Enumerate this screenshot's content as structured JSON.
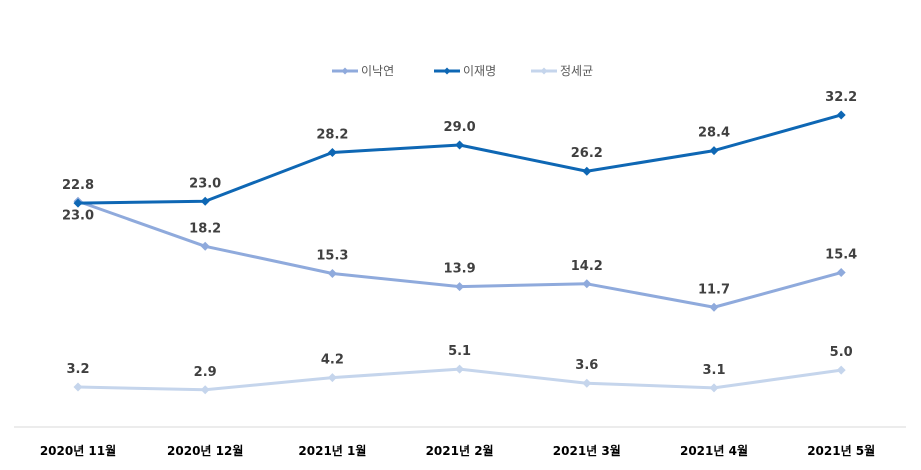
{
  "chart_data": {
    "type": "line",
    "categories": [
      "2020년 11월",
      "2020년 12월",
      "2021년 1월",
      "2021년 2월",
      "2021년 3월",
      "2021년 4월",
      "2021년 5월"
    ],
    "series": [
      {
        "name": "이낙연",
        "color": "#8faadc",
        "values": [
          23.0,
          18.2,
          15.3,
          13.9,
          14.2,
          11.7,
          15.4
        ]
      },
      {
        "name": "이재명",
        "color": "#0e67b4",
        "values": [
          22.8,
          23.0,
          28.2,
          29.0,
          26.2,
          28.4,
          32.2
        ]
      },
      {
        "name": "정세균",
        "color": "#c5d5ec",
        "values": [
          3.2,
          2.9,
          4.2,
          5.1,
          3.6,
          3.1,
          5.0
        ]
      }
    ],
    "ylim": [
      0,
      35
    ],
    "grid": false,
    "legend_position": "top-center",
    "marker": "diamond",
    "data_labels": true
  }
}
